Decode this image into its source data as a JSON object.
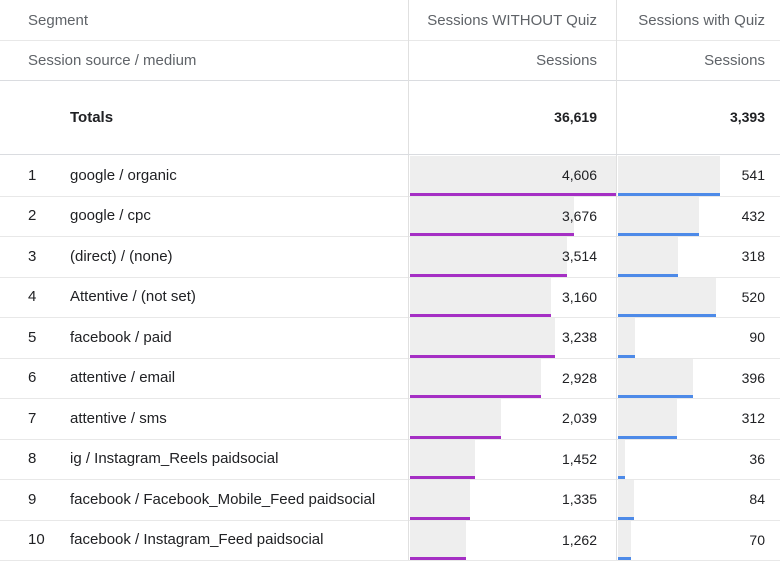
{
  "header": {
    "segment_label": "Segment",
    "col_a": "Sessions WITHOUT Quiz",
    "col_b": "Sessions with Quiz",
    "dimension_label": "Session source / medium",
    "metric_a": "Sessions",
    "metric_b": "Sessions"
  },
  "totals": {
    "label": "Totals",
    "a": "36,619",
    "b": "3,393"
  },
  "colors": {
    "bar_a": "#a52fc4",
    "bar_b": "#4d8ae8",
    "bar_bg": "#eeeeee"
  },
  "rows": [
    {
      "idx": "1",
      "name": "google / organic",
      "a": "4,606",
      "b": "541",
      "a_val": 4606,
      "b_val": 541
    },
    {
      "idx": "2",
      "name": "google / cpc",
      "a": "3,676",
      "b": "432",
      "a_val": 3676,
      "b_val": 432
    },
    {
      "idx": "3",
      "name": "(direct) / (none)",
      "a": "3,514",
      "b": "318",
      "a_val": 3514,
      "b_val": 318
    },
    {
      "idx": "4",
      "name": "Attentive / (not set)",
      "a": "3,160",
      "b": "520",
      "a_val": 3160,
      "b_val": 520
    },
    {
      "idx": "5",
      "name": "facebook / paid",
      "a": "3,238",
      "b": "90",
      "a_val": 3238,
      "b_val": 90
    },
    {
      "idx": "6",
      "name": "attentive / email",
      "a": "2,928",
      "b": "396",
      "a_val": 2928,
      "b_val": 396
    },
    {
      "idx": "7",
      "name": "attentive / sms",
      "a": "2,039",
      "b": "312",
      "a_val": 2039,
      "b_val": 312
    },
    {
      "idx": "8",
      "name": "ig / Instagram_Reels paidsocial",
      "a": "1,452",
      "b": "36",
      "a_val": 1452,
      "b_val": 36
    },
    {
      "idx": "9",
      "name": "facebook / Facebook_Mobile_Feed paidsocial",
      "a": "1,335",
      "b": "84",
      "a_val": 1335,
      "b_val": 84
    },
    {
      "idx": "10",
      "name": "facebook / Instagram_Feed paidsocial",
      "a": "1,262",
      "b": "70",
      "a_val": 1262,
      "b_val": 70
    }
  ]
}
